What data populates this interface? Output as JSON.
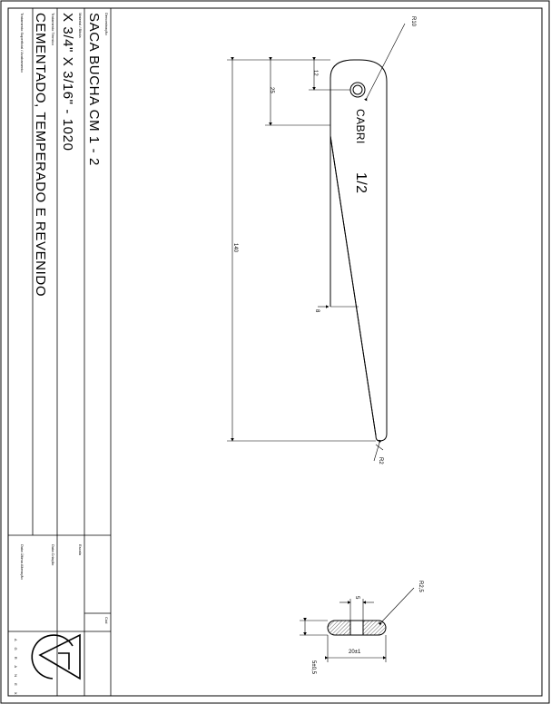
{
  "title_block": {
    "denominacao_label": "Denominação",
    "denominacao": "SACA BUCHA CM 1 - 2",
    "material_label": "Material / Bitola",
    "material": "X 3/4\" X 3/16\" - 1020",
    "tratamento_label": "Tratamento Térmico",
    "tratamento": "CEMENTADO, TEMPERADO E REVENIDO",
    "tratamento_superficial_label": "Tratamento Superficial / Acabamento",
    "escala_label": "Escala",
    "data_criacao_label": "Data Criação",
    "data_ultima_label": "Data Última Alteração",
    "cod_label": "Cód",
    "logo_text": "A G R A N E X"
  },
  "drawing": {
    "radius_top_label": "R10",
    "dim_12": "12",
    "dim_25": "25",
    "dim_140": "140",
    "dim_8": "8",
    "radius_tip_label": "R2",
    "engrave_brand": "CABRI",
    "engrave_size": "1/2"
  },
  "section": {
    "dim_5": "5",
    "radius_label": "R2,5",
    "width_label": "20±1",
    "thickness_label": "5±0,5"
  }
}
